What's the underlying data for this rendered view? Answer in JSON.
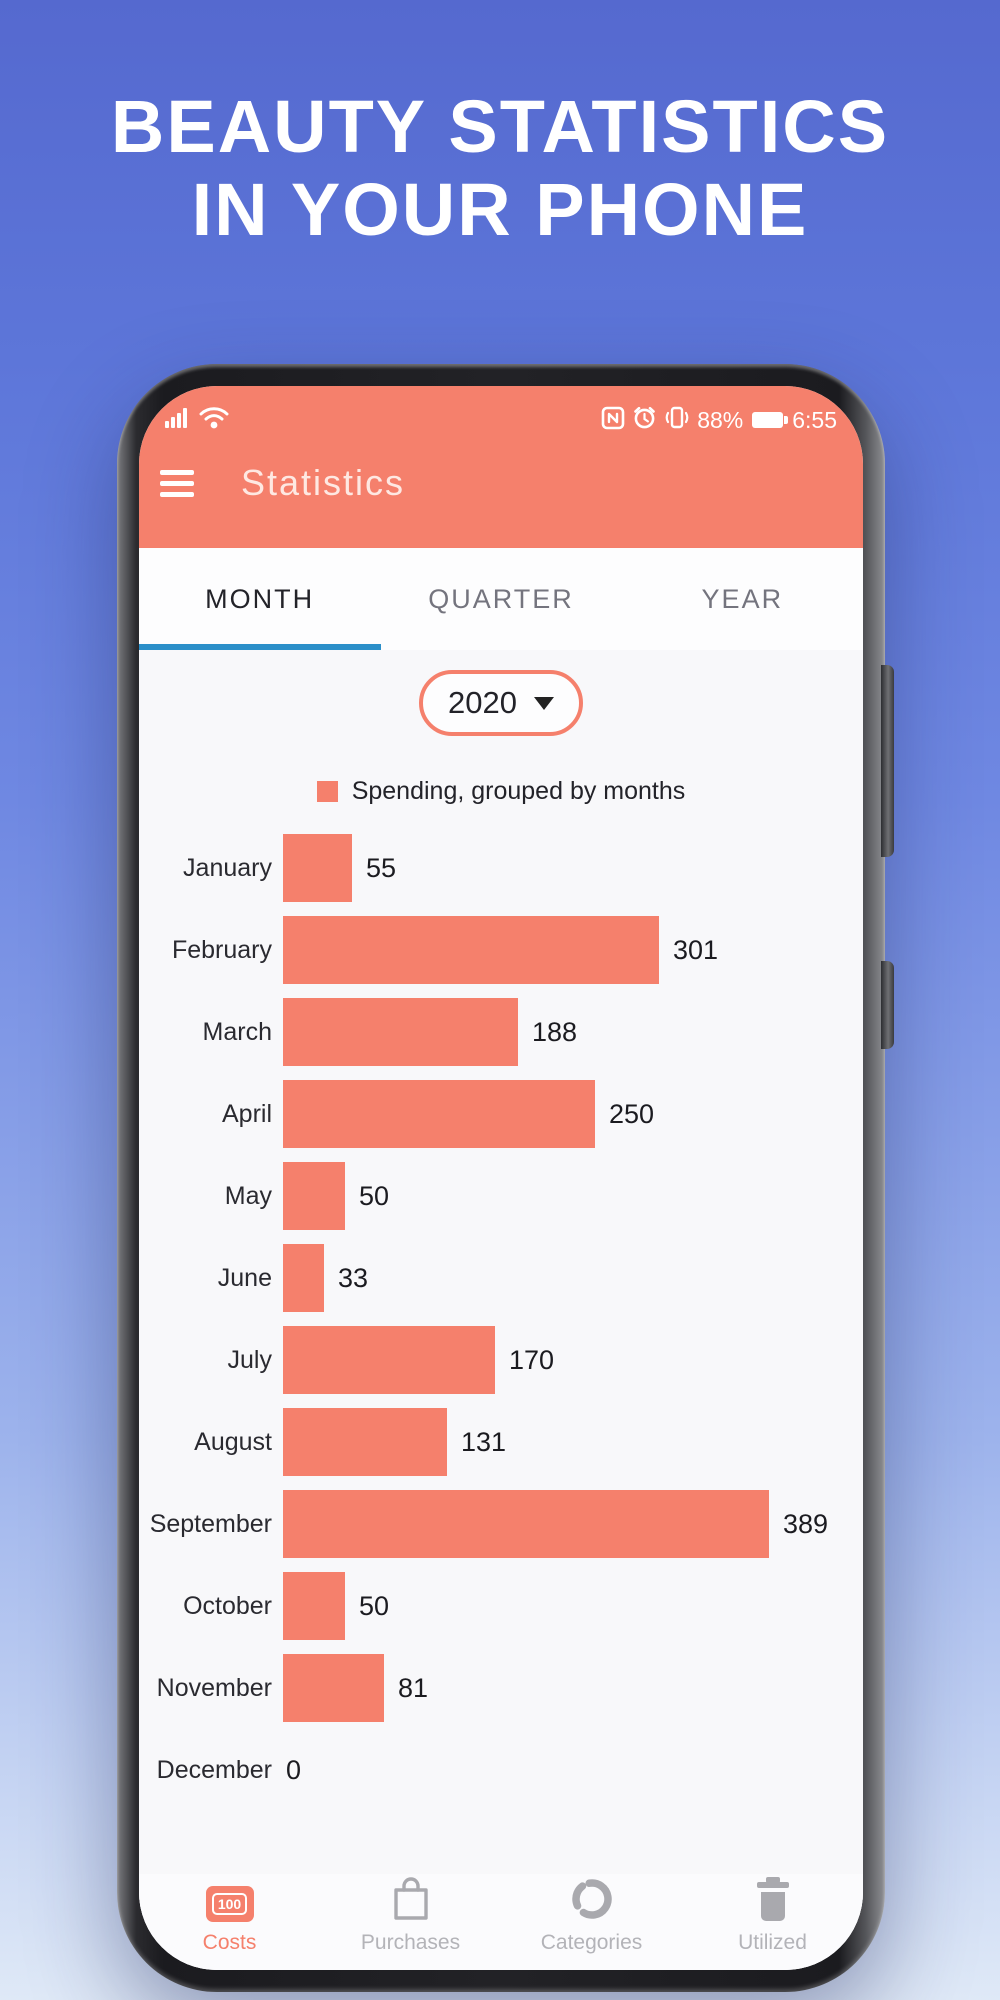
{
  "hero": {
    "title_line1": "BEAUTY STATISTICS",
    "title_line2": "IN YOUR PHONE"
  },
  "colors": {
    "accent": "#f5806c",
    "tab_underline": "#2b8fc9",
    "screen_bg": "#f8f8fa"
  },
  "status_bar": {
    "left_icons": [
      "signal-icon",
      "wifi-icon"
    ],
    "right_icons": [
      "nfc-icon",
      "alarm-icon",
      "vibrate-icon",
      "battery-icon"
    ],
    "battery_percent": "88%",
    "time": "6:55"
  },
  "app_bar": {
    "title": "Statistics",
    "menu_icon": "hamburger-icon"
  },
  "tabs": [
    {
      "label": "MONTH",
      "active": true
    },
    {
      "label": "QUARTER",
      "active": false
    },
    {
      "label": "YEAR",
      "active": false
    }
  ],
  "year_selector": {
    "value": "2020"
  },
  "chart_data": {
    "type": "bar",
    "orientation": "horizontal",
    "title": "",
    "legend": "Spending, grouped by months",
    "categories": [
      "January",
      "February",
      "March",
      "April",
      "May",
      "June",
      "July",
      "August",
      "September",
      "October",
      "November",
      "December"
    ],
    "values": [
      55,
      301,
      188,
      250,
      50,
      33,
      170,
      131,
      389,
      50,
      81,
      0
    ],
    "xlim": [
      0,
      389
    ],
    "bar_color": "#f5806c",
    "grid": false,
    "value_labels": true
  },
  "bottom_nav": [
    {
      "label": "Costs",
      "icon": "banknote-100-icon",
      "icon_text": "100",
      "active": true
    },
    {
      "label": "Purchases",
      "icon": "shopping-bag-icon",
      "active": false
    },
    {
      "label": "Categories",
      "icon": "donut-chart-icon",
      "active": false
    },
    {
      "label": "Utilized",
      "icon": "trash-icon",
      "active": false
    }
  ]
}
